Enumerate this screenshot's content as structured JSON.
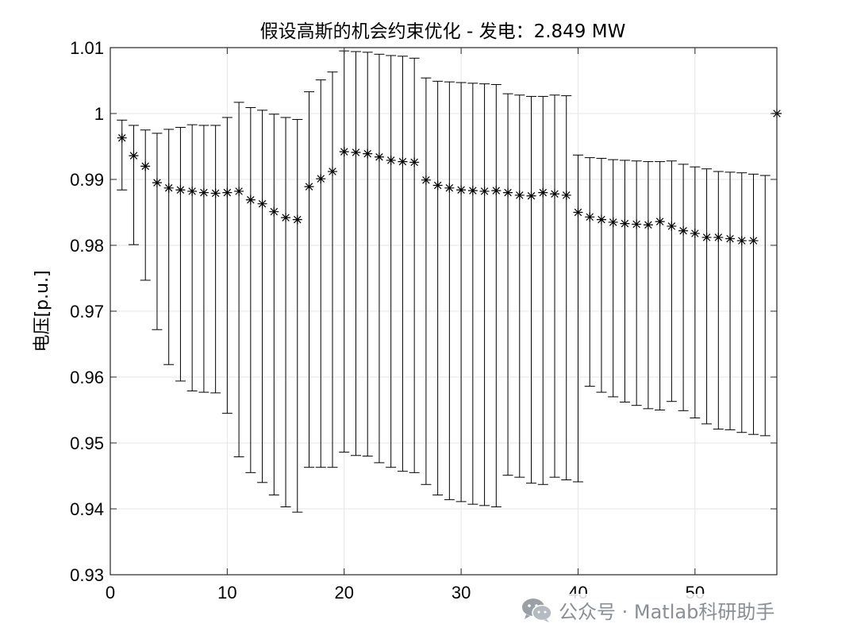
{
  "chart_data": {
    "type": "errorbar",
    "title": "假设高斯的机会约束优化 - 发电：2.849 MW",
    "xlabel": "",
    "ylabel": "电压[p.u.]",
    "xlim": [
      0,
      57
    ],
    "ylim": [
      0.93,
      1.01
    ],
    "xticks": [
      0,
      10,
      20,
      30,
      40,
      50
    ],
    "xtick_labels": [
      "0",
      "10",
      "20",
      "30",
      "40",
      "50"
    ],
    "yticks": [
      0.93,
      0.94,
      0.95,
      0.96,
      0.97,
      0.98,
      0.99,
      1,
      1.01
    ],
    "ytick_labels": [
      "0.93",
      "0.94",
      "0.95",
      "0.96",
      "0.97",
      "0.98",
      "0.99",
      "1",
      "1.01"
    ],
    "grid": true,
    "marker": "asterisk",
    "x": [
      1,
      2,
      3,
      4,
      5,
      6,
      7,
      8,
      9,
      10,
      11,
      12,
      13,
      14,
      15,
      16,
      17,
      18,
      19,
      20,
      21,
      22,
      23,
      24,
      25,
      26,
      27,
      28,
      29,
      30,
      31,
      32,
      33,
      34,
      35,
      36,
      37,
      38,
      39,
      40,
      41,
      42,
      43,
      44,
      45,
      46,
      47,
      48,
      49,
      50,
      51,
      52,
      53,
      54,
      55,
      56,
      57
    ],
    "y": [
      0.9963,
      0.9936,
      0.992,
      0.9895,
      0.9887,
      0.9884,
      0.9882,
      0.988,
      0.9879,
      0.988,
      0.9882,
      0.9869,
      0.9863,
      0.9851,
      0.9842,
      0.9839,
      0.9889,
      0.9901,
      0.9912,
      0.9942,
      0.9941,
      0.9939,
      0.9934,
      0.9929,
      0.9927,
      0.9926,
      0.9899,
      0.9891,
      0.9887,
      0.9884,
      0.9883,
      0.9882,
      0.9883,
      0.988,
      0.9876,
      0.9875,
      0.988,
      0.9878,
      0.9876,
      0.985,
      0.9843,
      0.9839,
      0.9835,
      0.9833,
      0.9832,
      0.9831,
      0.9836,
      0.9829,
      0.9822,
      0.9818,
      0.9812,
      0.9812,
      0.981,
      0.9807,
      0.9807,
      null,
      1.0
    ],
    "upper": [
      0.999,
      0.9982,
      0.9975,
      0.997,
      0.9976,
      0.9979,
      0.9983,
      0.9982,
      0.9982,
      0.9994,
      1.0017,
      1.0009,
      1.0005,
      0.9999,
      0.9994,
      0.9991,
      1.0033,
      1.0051,
      1.0063,
      1.0095,
      1.0094,
      1.0093,
      1.009,
      1.0088,
      1.0087,
      1.0084,
      1.0054,
      1.0049,
      1.0048,
      1.0047,
      1.0046,
      1.0045,
      1.0044,
      1.003,
      1.0028,
      1.0026,
      1.0026,
      1.0028,
      1.0027,
      0.9937,
      0.9933,
      0.9932,
      0.993,
      0.9929,
      0.9928,
      0.9927,
      0.9927,
      0.9928,
      0.9923,
      0.9919,
      0.9916,
      0.9912,
      0.9911,
      0.991,
      0.9908,
      0.9906,
      null
    ],
    "lower": [
      0.9884,
      0.9801,
      0.9747,
      0.9672,
      0.9619,
      0.9594,
      0.9579,
      0.9577,
      0.9576,
      0.9545,
      0.9479,
      0.9455,
      0.944,
      0.9421,
      0.9403,
      0.9395,
      0.9463,
      0.9463,
      0.9463,
      0.9486,
      0.9481,
      0.948,
      0.947,
      0.9463,
      0.9457,
      0.9455,
      0.9437,
      0.9421,
      0.9414,
      0.9411,
      0.9407,
      0.9405,
      0.9403,
      0.9451,
      0.9448,
      0.9439,
      0.9437,
      0.9448,
      0.9444,
      0.9441,
      0.9586,
      0.9577,
      0.957,
      0.9562,
      0.9557,
      0.9552,
      0.955,
      0.9563,
      0.9549,
      0.9538,
      0.9529,
      0.9521,
      0.952,
      0.9516,
      0.9513,
      0.9511,
      null
    ]
  },
  "watermark": {
    "icon": "wechat-icon",
    "text": "公众号 · Matlab科研助手"
  }
}
